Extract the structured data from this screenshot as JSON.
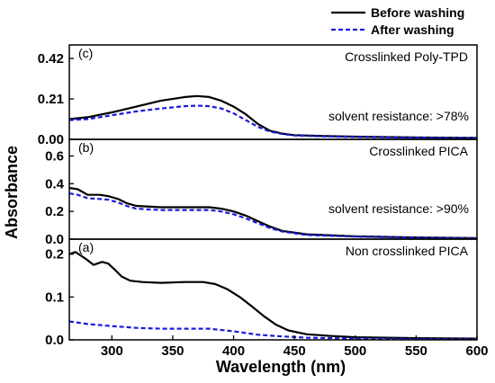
{
  "chart_data": {
    "type": "line",
    "xlabel": "Wavelength (nm)",
    "ylabel": "Absorbance",
    "xlim": [
      265,
      600
    ],
    "xticks": [
      300,
      350,
      400,
      450,
      500,
      550,
      600
    ],
    "legend": {
      "placement": "top-right",
      "entries": [
        {
          "name": "Before washing",
          "color": "#000000",
          "style": "solid"
        },
        {
          "name": "After washing",
          "color": "#1a1adf",
          "style": "dashed"
        }
      ]
    },
    "panels": [
      {
        "id": "c",
        "tag": "(c)",
        "title": "Crosslinked Poly-TPD",
        "annotation": "solvent resistance: >78%",
        "ylim": [
          0,
          0.49
        ],
        "yticks": [
          {
            "value": 0.0,
            "label": "0.00"
          },
          {
            "value": 0.21,
            "label": "0.21"
          },
          {
            "value": 0.42,
            "label": "0.42"
          }
        ],
        "series": [
          {
            "name": "Before washing",
            "color": "#000000",
            "dashed": false,
            "x": [
              265,
              280,
              300,
              320,
              340,
              360,
              370,
              380,
              390,
              400,
              410,
              420,
              430,
              440,
              450,
              470,
              500,
              550,
              600
            ],
            "y": [
              0.105,
              0.115,
              0.14,
              0.17,
              0.2,
              0.22,
              0.225,
              0.22,
              0.2,
              0.17,
              0.13,
              0.08,
              0.045,
              0.03,
              0.022,
              0.018,
              0.014,
              0.01,
              0.008
            ]
          },
          {
            "name": "After washing",
            "color": "#1a1adf",
            "dashed": true,
            "x": [
              265,
              280,
              300,
              320,
              340,
              360,
              370,
              380,
              390,
              400,
              410,
              420,
              430,
              440,
              450,
              470,
              500,
              550,
              600
            ],
            "y": [
              0.1,
              0.105,
              0.125,
              0.145,
              0.16,
              0.172,
              0.175,
              0.172,
              0.16,
              0.135,
              0.1,
              0.065,
              0.04,
              0.028,
              0.02,
              0.016,
              0.012,
              0.009,
              0.006
            ]
          }
        ]
      },
      {
        "id": "b",
        "tag": "(b)",
        "title": "Crosslinked PICA",
        "annotation": "solvent resistance: >90%",
        "ylim": [
          0,
          0.72
        ],
        "yticks": [
          {
            "value": 0.0,
            "label": "0.0"
          },
          {
            "value": 0.2,
            "label": "0.2"
          },
          {
            "value": 0.4,
            "label": "0.4"
          },
          {
            "value": 0.6,
            "label": "0.6"
          }
        ],
        "series": [
          {
            "name": "Before washing",
            "color": "#000000",
            "dashed": false,
            "x": [
              265,
              272,
              280,
              290,
              297,
              305,
              312,
              320,
              340,
              360,
              380,
              390,
              400,
              410,
              420,
              430,
              440,
              460,
              500,
              550,
              600
            ],
            "y": [
              0.37,
              0.36,
              0.32,
              0.32,
              0.31,
              0.29,
              0.26,
              0.24,
              0.23,
              0.23,
              0.23,
              0.22,
              0.2,
              0.17,
              0.13,
              0.09,
              0.06,
              0.035,
              0.02,
              0.012,
              0.008
            ]
          },
          {
            "name": "After washing",
            "color": "#1a1adf",
            "dashed": true,
            "x": [
              265,
              272,
              280,
              290,
              297,
              305,
              312,
              320,
              340,
              360,
              380,
              390,
              400,
              410,
              420,
              430,
              440,
              460,
              500,
              550,
              600
            ],
            "y": [
              0.33,
              0.32,
              0.295,
              0.29,
              0.285,
              0.265,
              0.24,
              0.22,
              0.21,
              0.21,
              0.21,
              0.2,
              0.18,
              0.15,
              0.115,
              0.08,
              0.055,
              0.03,
              0.018,
              0.01,
              0.006
            ]
          }
        ]
      },
      {
        "id": "a",
        "tag": "(a)",
        "title": "Non crosslinked PICA",
        "annotation": "",
        "ylim": [
          0,
          0.235
        ],
        "yticks": [
          {
            "value": 0.0,
            "label": "0.0"
          },
          {
            "value": 0.1,
            "label": "0.1"
          },
          {
            "value": 0.2,
            "label": "0.2"
          }
        ],
        "series": [
          {
            "name": "Before washing",
            "color": "#000000",
            "dashed": false,
            "x": [
              265,
              270,
              278,
              285,
              292,
              297,
              302,
              308,
              315,
              325,
              340,
              360,
              375,
              385,
              395,
              405,
              415,
              425,
              435,
              445,
              460,
              480,
              500,
              550,
              600
            ],
            "y": [
              0.2,
              0.205,
              0.19,
              0.175,
              0.182,
              0.178,
              0.165,
              0.148,
              0.138,
              0.135,
              0.133,
              0.135,
              0.135,
              0.13,
              0.118,
              0.1,
              0.078,
              0.055,
              0.035,
              0.022,
              0.013,
              0.009,
              0.006,
              0.004,
              0.003
            ]
          },
          {
            "name": "After washing",
            "color": "#1a1adf",
            "dashed": true,
            "x": [
              265,
              280,
              300,
              320,
              340,
              360,
              380,
              400,
              420,
              440,
              460,
              500,
              550,
              600
            ],
            "y": [
              0.043,
              0.037,
              0.032,
              0.028,
              0.026,
              0.026,
              0.026,
              0.02,
              0.012,
              0.008,
              0.005,
              0.003,
              0.002,
              0.001
            ]
          }
        ]
      }
    ]
  }
}
